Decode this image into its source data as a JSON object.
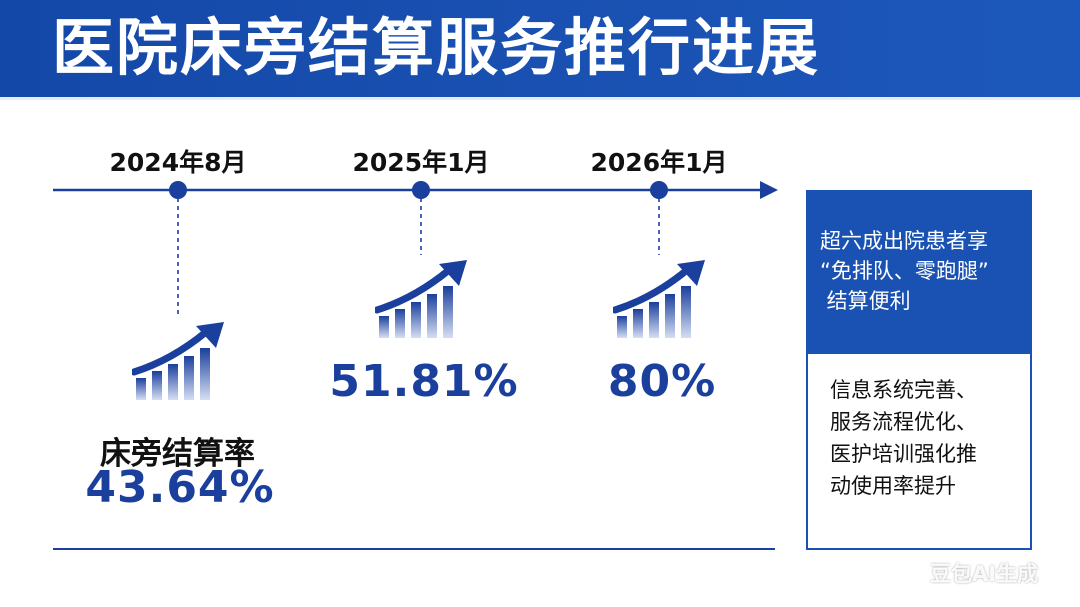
{
  "header": {
    "title": "医院床旁结算服务推行进展"
  },
  "timeline": {
    "milestones": [
      {
        "date": "2024年8月",
        "value": "43.64%",
        "label": "床旁结算率"
      },
      {
        "date": "2025年1月",
        "value": "51.81%"
      },
      {
        "date": "2026年1月",
        "value": "80%"
      }
    ]
  },
  "panel": {
    "top_lines": [
      "超六成出院患者享",
      "“免排队、零跑腿”",
      " 结算便利"
    ],
    "bottom_lines": [
      "信息系统完善、",
      "服务流程优化、",
      "医护培训强化推",
      "动使用率提升"
    ]
  },
  "colors": {
    "primary": "#1a52b3",
    "dark_blue": "#1a3f9c",
    "icon_light": "#c7d3ee"
  },
  "icons": {
    "growth": "growth-chart-icon"
  },
  "watermark": "豆包AI生成"
}
